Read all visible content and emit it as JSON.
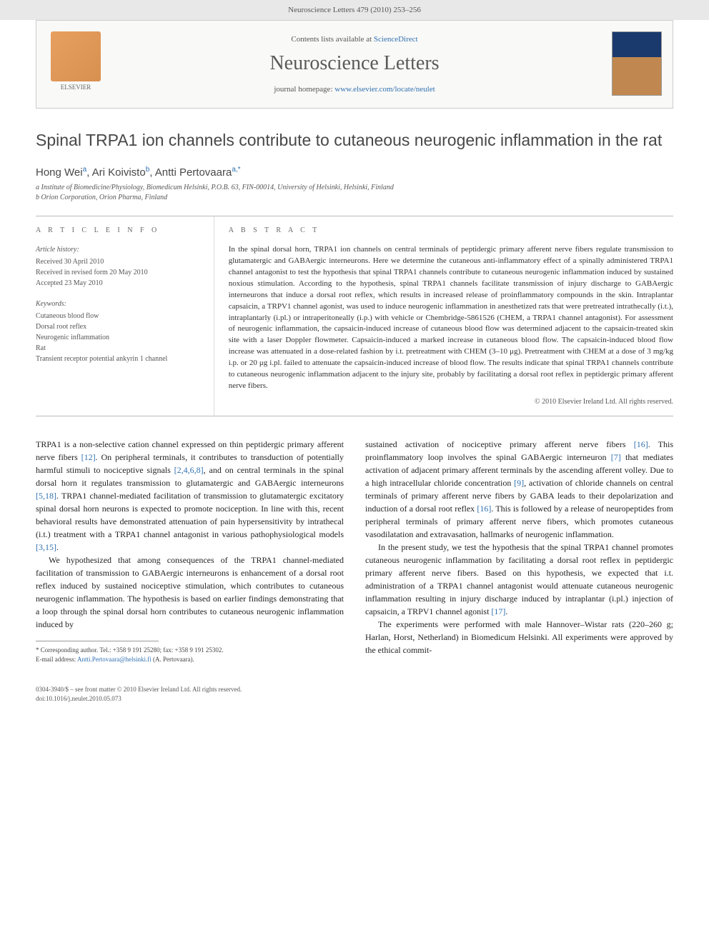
{
  "header_strip": "Neuroscience Letters 479 (2010) 253–256",
  "journal_header": {
    "contents_text": "Contents lists available at ",
    "contents_link": "ScienceDirect",
    "journal_name": "Neuroscience Letters",
    "homepage_text": "journal homepage: ",
    "homepage_link": "www.elsevier.com/locate/neulet",
    "publisher": "ELSEVIER"
  },
  "article": {
    "title": "Spinal TRPA1 ion channels contribute to cutaneous neurogenic inflammation in the rat",
    "authors_html": "Hong Wei<sup>a</sup>, Ari Koivisto<sup>b</sup>, Antti Pertovaara<sup>a,*</sup>",
    "affiliations": {
      "a": "a Institute of Biomedicine/Physiology, Biomedicum Helsinki, P.O.B. 63, FIN-00014, University of Helsinki, Helsinki, Finland",
      "b": "b Orion Corporation, Orion Pharma, Finland"
    }
  },
  "article_info": {
    "heading": "A R T I C L E   I N F O",
    "history_heading": "Article history:",
    "received": "Received 30 April 2010",
    "revised": "Received in revised form 20 May 2010",
    "accepted": "Accepted 23 May 2010",
    "keywords_heading": "Keywords:",
    "keywords": [
      "Cutaneous blood flow",
      "Dorsal root reflex",
      "Neurogenic inflammation",
      "Rat",
      "Transient receptor potential ankyrin 1 channel"
    ]
  },
  "abstract": {
    "heading": "A B S T R A C T",
    "text": "In the spinal dorsal horn, TRPA1 ion channels on central terminals of peptidergic primary afferent nerve fibers regulate transmission to glutamatergic and GABAergic interneurons. Here we determine the cutaneous anti-inflammatory effect of a spinally administered TRPA1 channel antagonist to test the hypothesis that spinal TRPA1 channels contribute to cutaneous neurogenic inflammation induced by sustained noxious stimulation. According to the hypothesis, spinal TRPA1 channels facilitate transmission of injury discharge to GABAergic interneurons that induce a dorsal root reflex, which results in increased release of proinflammatory compounds in the skin. Intraplantar capsaicin, a TRPV1 channel agonist, was used to induce neurogenic inflammation in anesthetized rats that were pretreated intrathecally (i.t.), intraplantarly (i.pl.) or intraperitoneally (i.p.) with vehicle or Chembridge-5861526 (CHEM, a TRPA1 channel antagonist). For assessment of neurogenic inflammation, the capsaicin-induced increase of cutaneous blood flow was determined adjacent to the capsaicin-treated skin site with a laser Doppler flowmeter. Capsaicin-induced a marked increase in cutaneous blood flow. The capsaicin-induced blood flow increase was attenuated in a dose-related fashion by i.t. pretreatment with CHEM (3–10 μg). Pretreatment with CHEM at a dose of 3 mg/kg i.p. or 20 μg i.pl. failed to attenuate the capsaicin-induced increase of blood flow. The results indicate that spinal TRPA1 channels contribute to cutaneous neurogenic inflammation adjacent to the injury site, probably by facilitating a dorsal root reflex in peptidergic primary afferent nerve fibers.",
    "copyright": "© 2010 Elsevier Ireland Ltd. All rights reserved."
  },
  "body": {
    "left": {
      "p1": "TRPA1 is a non-selective cation channel expressed on thin peptidergic primary afferent nerve fibers [12]. On peripheral terminals, it contributes to transduction of potentially harmful stimuli to nociceptive signals [2,4,6,8], and on central terminals in the spinal dorsal horn it regulates transmission to glutamatergic and GABAergic interneurons [5,18]. TRPA1 channel-mediated facilitation of transmission to glutamatergic excitatory spinal dorsal horn neurons is expected to promote nociception. In line with this, recent behavioral results have demonstrated attenuation of pain hypersensitivity by intrathecal (i.t.) treatment with a TRPA1 channel antagonist in various pathophysiological models [3,15].",
      "p2": "We hypothesized that among consequences of the TRPA1 channel-mediated facilitation of transmission to GABAergic interneurons is enhancement of a dorsal root reflex induced by sustained nociceptive stimulation, which contributes to cutaneous neurogenic inflammation. The hypothesis is based on earlier findings demonstrating that a loop through the spinal dorsal horn contributes to cutaneous neurogenic inflammation induced by"
    },
    "right": {
      "p1": "sustained activation of nociceptive primary afferent nerve fibers [16]. This proinflammatory loop involves the spinal GABAergic interneuron [7] that mediates activation of adjacent primary afferent terminals by the ascending afferent volley. Due to a high intracellular chloride concentration [9], activation of chloride channels on central terminals of primary afferent nerve fibers by GABA leads to their depolarization and induction of a dorsal root reflex [16]. This is followed by a release of neuropeptides from peripheral terminals of primary afferent nerve fibers, which promotes cutaneous vasodilatation and extravasation, hallmarks of neurogenic inflammation.",
      "p2": "In the present study, we test the hypothesis that the spinal TRPA1 channel promotes cutaneous neurogenic inflammation by facilitating a dorsal root reflex in peptidergic primary afferent nerve fibers. Based on this hypothesis, we expected that i.t. administration of a TRPA1 channel antagonist would attenuate cutaneous neurogenic inflammation resulting in injury discharge induced by intraplantar (i.pl.) injection of capsaicin, a TRPV1 channel agonist [17].",
      "p3": "The experiments were performed with male Hannover–Wistar rats (220–260 g; Harlan, Horst, Netherland) in Biomedicum Helsinki. All experiments were approved by the ethical commit-"
    }
  },
  "footnotes": {
    "corresponding": "* Corresponding author. Tel.: +358 9 191 25280; fax: +358 9 191 25302.",
    "email_label": "E-mail address: ",
    "email": "Antti.Pertovaara@helsinki.fi",
    "email_suffix": " (A. Pertovaara)."
  },
  "page_footer": {
    "line1": "0304-3940/$ – see front matter © 2010 Elsevier Ireland Ltd. All rights reserved.",
    "line2": "doi:10.1016/j.neulet.2010.05.073"
  },
  "colors": {
    "link": "#3070b0",
    "heading_gray": "#5a5a5a",
    "text": "#333333"
  }
}
